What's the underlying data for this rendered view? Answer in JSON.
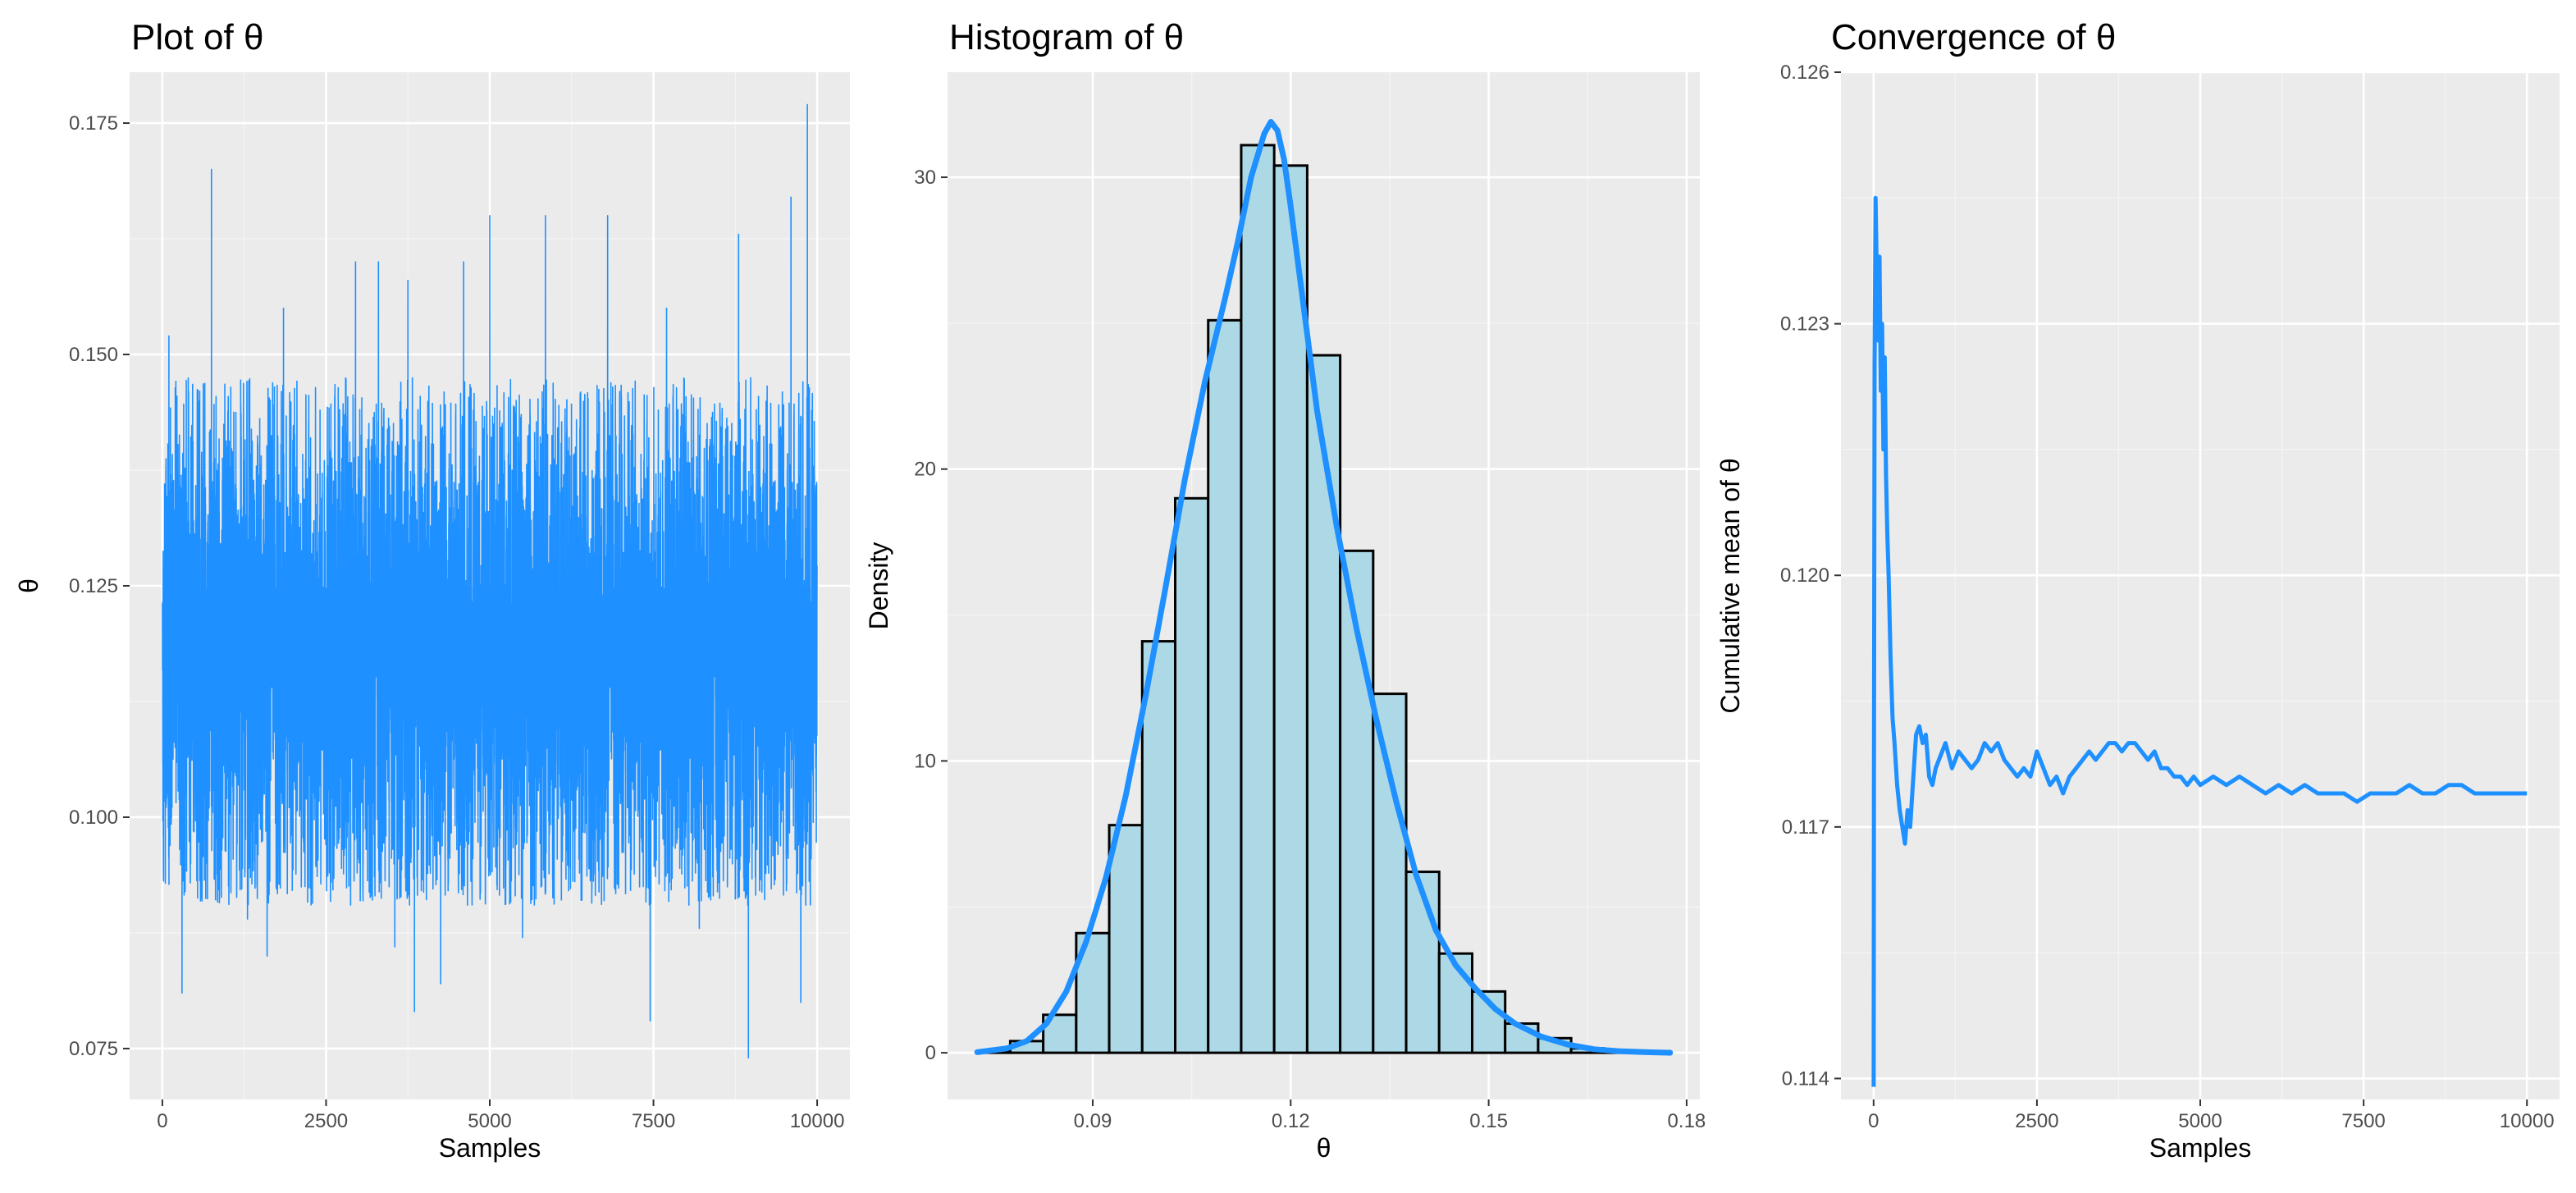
{
  "theme": {
    "panel_bg": "#ebebeb",
    "grid_major": "#ffffff",
    "grid_minor": "#f5f5f5",
    "line_color": "#1e90ff",
    "bar_fill": "#add8e6",
    "bar_stroke": "#000000"
  },
  "chart_data": [
    {
      "type": "line",
      "title": "Plot of θ",
      "xlabel": "Samples",
      "ylabel": "θ",
      "xlim": [
        -500,
        10500
      ],
      "ylim": [
        0.0695,
        0.1805
      ],
      "xticks": [
        0,
        2500,
        5000,
        7500,
        10000
      ],
      "xtick_labels": [
        "0",
        "2500",
        "5000",
        "7500",
        "10000"
      ],
      "yticks": [
        0.075,
        0.1,
        0.125,
        0.15,
        0.175
      ],
      "ytick_labels": [
        "0.075",
        "0.100",
        "0.125",
        "0.150",
        "0.175"
      ],
      "grid": true,
      "series": [
        {
          "description": "MCMC trace of θ, 10000 samples; values mostly 0.09–0.145 with spikes up to 0.177 and down to 0.073",
          "n_samples": 10000,
          "peaks": [
            [
              100,
              0.152
            ],
            [
              400,
              0.146
            ],
            [
              750,
              0.17
            ],
            [
              1850,
              0.155
            ],
            [
              2950,
              0.16
            ],
            [
              3300,
              0.16
            ],
            [
              3750,
              0.158
            ],
            [
              4600,
              0.16
            ],
            [
              5000,
              0.165
            ],
            [
              5850,
              0.165
            ],
            [
              6800,
              0.165
            ],
            [
              7700,
              0.155
            ],
            [
              8800,
              0.163
            ],
            [
              9600,
              0.167
            ],
            [
              9850,
              0.177
            ]
          ],
          "troughs": [
            [
              300,
              0.081
            ],
            [
              1300,
              0.089
            ],
            [
              1600,
              0.085
            ],
            [
              3550,
              0.086
            ],
            [
              3850,
              0.079
            ],
            [
              4250,
              0.082
            ],
            [
              5500,
              0.087
            ],
            [
              7450,
              0.078
            ],
            [
              8200,
              0.088
            ],
            [
              8950,
              0.074
            ],
            [
              9750,
              0.08
            ]
          ]
        }
      ]
    },
    {
      "type": "bar",
      "title": "Histogram of θ",
      "xlabel": "θ",
      "ylabel": "Density",
      "xlim": [
        0.068,
        0.182
      ],
      "ylim": [
        -1.6,
        33.6
      ],
      "xticks": [
        0.09,
        0.12,
        0.15,
        0.18
      ],
      "xtick_labels": [
        "0.09",
        "0.12",
        "0.15",
        "0.18"
      ],
      "yticks": [
        0,
        10,
        20,
        30
      ],
      "ytick_labels": [
        "0",
        "10",
        "20",
        "30"
      ],
      "grid": true,
      "bin_width": 0.005,
      "bin_left_edges": [
        0.0725,
        0.0775,
        0.0825,
        0.0875,
        0.0925,
        0.0975,
        0.1025,
        0.1075,
        0.1125,
        0.1175,
        0.1225,
        0.1275,
        0.1325,
        0.1375,
        0.1425,
        0.1475,
        0.1525,
        0.1575,
        0.1625,
        0.1675,
        0.1725
      ],
      "values": [
        0.05,
        0.4,
        1.3,
        4.1,
        7.8,
        14.1,
        19.0,
        25.1,
        31.1,
        30.4,
        23.9,
        17.2,
        12.3,
        6.2,
        3.4,
        2.1,
        1.0,
        0.5,
        0.15,
        0.05,
        0.05
      ],
      "density_curve": {
        "x": [
          0.0725,
          0.077,
          0.08,
          0.083,
          0.086,
          0.089,
          0.092,
          0.095,
          0.098,
          0.101,
          0.104,
          0.107,
          0.11,
          0.112,
          0.114,
          0.116,
          0.117,
          0.118,
          0.119,
          0.12,
          0.122,
          0.124,
          0.127,
          0.13,
          0.133,
          0.136,
          0.139,
          0.142,
          0.145,
          0.148,
          0.151,
          0.154,
          0.158,
          0.162,
          0.166,
          0.17,
          0.174,
          0.1775
        ],
        "y": [
          0.02,
          0.15,
          0.4,
          1.0,
          2.1,
          3.8,
          6.0,
          8.8,
          12.2,
          15.9,
          19.7,
          23.0,
          25.8,
          27.8,
          30.0,
          31.5,
          31.9,
          31.6,
          30.6,
          29.0,
          25.5,
          22.0,
          18.0,
          14.5,
          11.4,
          8.6,
          6.1,
          4.2,
          3.0,
          2.2,
          1.5,
          1.0,
          0.55,
          0.28,
          0.12,
          0.05,
          0.02,
          0.0
        ]
      }
    },
    {
      "type": "line",
      "title": "Convergence of  θ",
      "xlabel": "Samples",
      "ylabel": "Cumulative mean of  θ",
      "xlim": [
        -500,
        10500
      ],
      "ylim": [
        0.11375,
        0.126
      ],
      "xticks": [
        0,
        2500,
        5000,
        7500,
        10000
      ],
      "xtick_labels": [
        "0",
        "2500",
        "5000",
        "7500",
        "10000"
      ],
      "yticks": [
        0.114,
        0.117,
        0.12,
        0.123,
        0.126
      ],
      "ytick_labels": [
        "0.114",
        "0.117",
        "0.120",
        "0.123",
        "0.126"
      ],
      "grid": true,
      "series": [
        {
          "x": [
            1,
            5,
            15,
            30,
            50,
            70,
            90,
            110,
            130,
            150,
            170,
            190,
            210,
            230,
            260,
            290,
            320,
            360,
            400,
            440,
            480,
            520,
            560,
            600,
            650,
            700,
            750,
            800,
            850,
            900,
            950,
            1000,
            1100,
            1200,
            1300,
            1400,
            1500,
            1600,
            1700,
            1800,
            1900,
            2000,
            2100,
            2200,
            2300,
            2400,
            2500,
            2600,
            2700,
            2800,
            2900,
            3000,
            3100,
            3200,
            3300,
            3400,
            3500,
            3600,
            3700,
            3800,
            3900,
            4000,
            4100,
            4200,
            4300,
            4400,
            4500,
            4600,
            4700,
            4800,
            4900,
            5000,
            5200,
            5400,
            5600,
            5800,
            6000,
            6200,
            6400,
            6600,
            6800,
            7000,
            7200,
            7400,
            7600,
            7800,
            8000,
            8200,
            8400,
            8600,
            8800,
            9000,
            9200,
            9400,
            9600,
            9800,
            10000
          ],
          "y": [
            0.1139,
            0.1175,
            0.1225,
            0.1245,
            0.1235,
            0.1228,
            0.1238,
            0.1222,
            0.123,
            0.1215,
            0.1226,
            0.1212,
            0.1205,
            0.12,
            0.119,
            0.1183,
            0.118,
            0.1175,
            0.1172,
            0.117,
            0.1168,
            0.1172,
            0.117,
            0.1175,
            0.1181,
            0.1182,
            0.118,
            0.1181,
            0.1176,
            0.1175,
            0.1177,
            0.1178,
            0.118,
            0.1177,
            0.1179,
            0.1178,
            0.1177,
            0.1178,
            0.118,
            0.1179,
            0.118,
            0.1178,
            0.1177,
            0.1176,
            0.1177,
            0.1176,
            0.1179,
            0.1177,
            0.1175,
            0.1176,
            0.1174,
            0.1176,
            0.1177,
            0.1178,
            0.1179,
            0.1178,
            0.1179,
            0.118,
            0.118,
            0.1179,
            0.118,
            0.118,
            0.1179,
            0.1178,
            0.1179,
            0.1177,
            0.1177,
            0.1176,
            0.1176,
            0.1175,
            0.1176,
            0.1175,
            0.1176,
            0.1175,
            0.1176,
            0.1175,
            0.1174,
            0.1175,
            0.1174,
            0.1175,
            0.1174,
            0.1174,
            0.1174,
            0.1173,
            0.1174,
            0.1174,
            0.1174,
            0.1175,
            0.1174,
            0.1174,
            0.1175,
            0.1175,
            0.1174,
            0.1174,
            0.1174,
            0.1174,
            0.1174
          ]
        }
      ]
    }
  ]
}
